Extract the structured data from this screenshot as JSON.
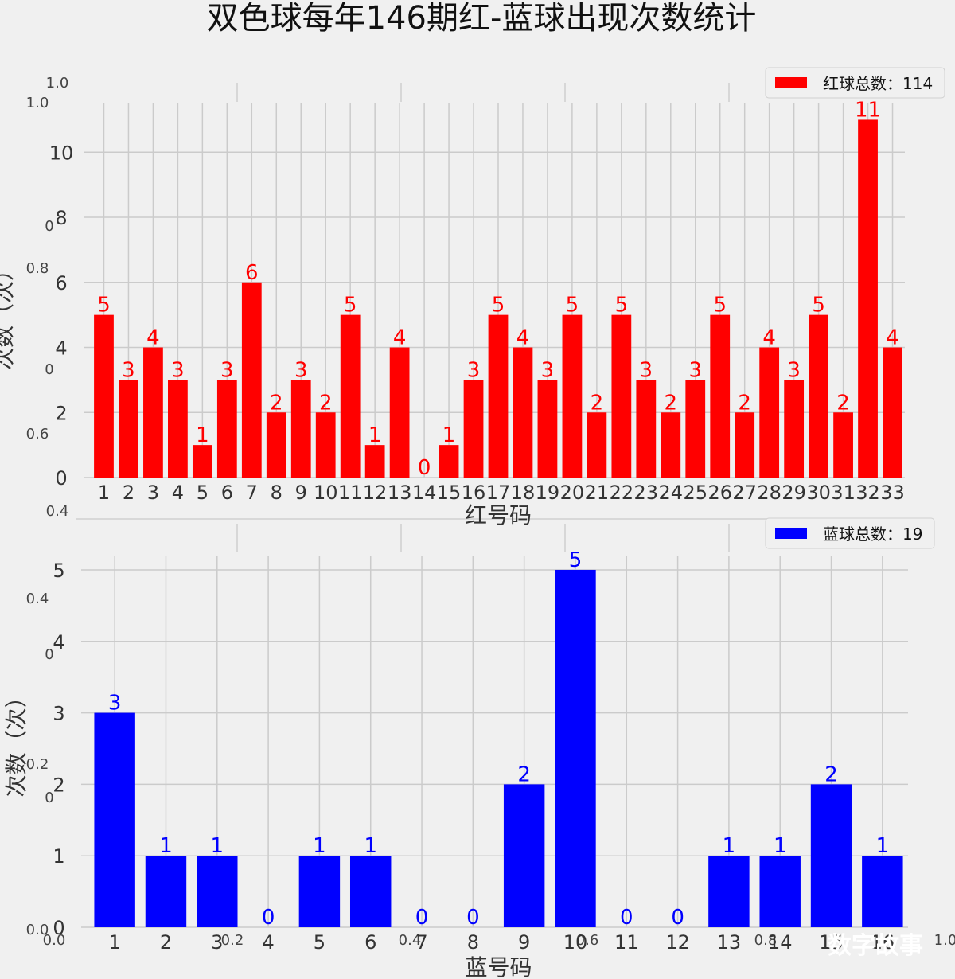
{
  "title": "双色球每年146期红-蓝球出现次数统计",
  "watermark": "数字故事",
  "bg_ticks": {
    "top": [
      "1.0",
      "1.0",
      "0",
      "0.8",
      "0",
      "0.6",
      "0.4"
    ],
    "bottom": [
      "0.4",
      "0",
      "0.2",
      "0",
      "0.0",
      "0.0",
      "0.2",
      "0.4",
      "0.6",
      "0.8",
      "1.0"
    ]
  },
  "chart_data": [
    {
      "type": "bar",
      "categories": [
        "1",
        "2",
        "3",
        "4",
        "5",
        "6",
        "7",
        "8",
        "9",
        "10",
        "11",
        "12",
        "13",
        "14",
        "15",
        "16",
        "17",
        "18",
        "19",
        "20",
        "21",
        "22",
        "23",
        "24",
        "25",
        "26",
        "27",
        "28",
        "29",
        "30",
        "31",
        "32",
        "33"
      ],
      "values": [
        5,
        3,
        4,
        3,
        1,
        3,
        6,
        2,
        3,
        2,
        5,
        1,
        4,
        0,
        1,
        3,
        5,
        4,
        3,
        5,
        2,
        5,
        3,
        2,
        3,
        5,
        2,
        4,
        3,
        5,
        2,
        11,
        4
      ],
      "xlabel": "红号码",
      "ylabel": "次数（次）",
      "ylim": [
        0,
        11.5
      ],
      "yticks": [
        "0",
        "2",
        "4",
        "6",
        "8",
        "10"
      ],
      "legend": "红球总数：114",
      "legend_position": "top-right",
      "color": "#ff0000",
      "grid": true
    },
    {
      "type": "bar",
      "categories": [
        "1",
        "2",
        "3",
        "4",
        "5",
        "6",
        "7",
        "8",
        "9",
        "10",
        "11",
        "12",
        "13",
        "14",
        "15",
        "16"
      ],
      "values": [
        3,
        1,
        1,
        0,
        1,
        1,
        0,
        0,
        2,
        5,
        0,
        0,
        1,
        1,
        2,
        1
      ],
      "xlabel": "蓝号码",
      "ylabel": "次数（次）",
      "ylim": [
        0,
        5.2
      ],
      "yticks": [
        "0",
        "1",
        "2",
        "3",
        "4",
        "5"
      ],
      "legend": "蓝球总数：19",
      "legend_position": "top-right",
      "color": "#0000ff",
      "grid": true
    }
  ]
}
